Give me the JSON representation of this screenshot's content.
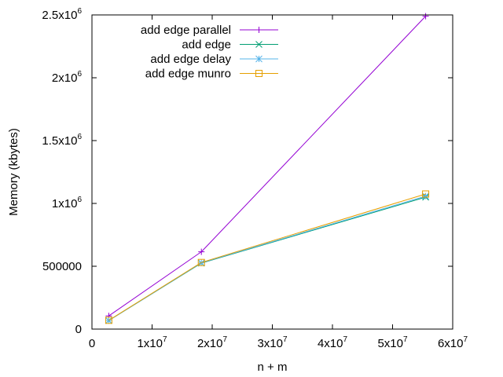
{
  "chart_data": {
    "type": "line",
    "title": "",
    "xlabel": "n + m",
    "ylabel": "Memory (kbytes)",
    "xlim": [
      0,
      60000000
    ],
    "ylim": [
      0,
      2500000
    ],
    "grid": false,
    "legend_position": "top-left",
    "x_ticks": [
      {
        "value": 0,
        "mant": "0",
        "exp": ""
      },
      {
        "value": 10000000,
        "mant": "1x10",
        "exp": "7"
      },
      {
        "value": 20000000,
        "mant": "2x10",
        "exp": "7"
      },
      {
        "value": 30000000,
        "mant": "3x10",
        "exp": "7"
      },
      {
        "value": 40000000,
        "mant": "4x10",
        "exp": "7"
      },
      {
        "value": 50000000,
        "mant": "5x10",
        "exp": "7"
      },
      {
        "value": 60000000,
        "mant": "6x10",
        "exp": "7"
      }
    ],
    "y_ticks": [
      {
        "value": 0,
        "mant": "0",
        "exp": ""
      },
      {
        "value": 500000,
        "mant": "500000",
        "exp": ""
      },
      {
        "value": 1000000,
        "mant": "1x10",
        "exp": "6"
      },
      {
        "value": 1500000,
        "mant": "1.5x10",
        "exp": "6"
      },
      {
        "value": 2000000,
        "mant": "2x10",
        "exp": "6"
      },
      {
        "value": 2500000,
        "mant": "2.5x10",
        "exp": "6"
      }
    ],
    "x": [
      2800000,
      18200000,
      55500000
    ],
    "series": [
      {
        "name": "add edge parallel",
        "color": "#9400d3",
        "marker": "plus",
        "values": [
          105000,
          615000,
          2490000
        ]
      },
      {
        "name": "add edge",
        "color": "#009e73",
        "marker": "cross",
        "values": [
          68000,
          525000,
          1050000
        ]
      },
      {
        "name": "add edge delay",
        "color": "#56b4e9",
        "marker": "star",
        "values": [
          68000,
          527000,
          1058000
        ]
      },
      {
        "name": "add edge munro",
        "color": "#e69f00",
        "marker": "square",
        "values": [
          70000,
          530000,
          1075000
        ]
      }
    ]
  }
}
